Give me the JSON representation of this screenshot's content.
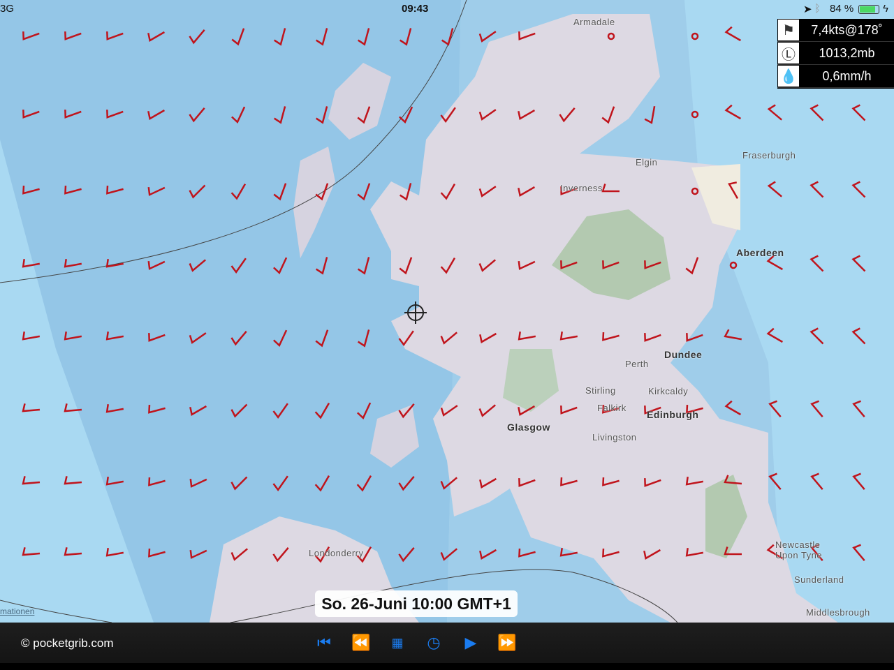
{
  "status_bar": {
    "carrier": "3G",
    "time": "09:43",
    "battery": "84 %",
    "battery_level": 0.84
  },
  "info_panel": {
    "wind": "7,4kts@178˚",
    "pressure": "1013,2mb",
    "precipitation": "0,6mm/h",
    "icons": [
      "windsock-icon",
      "pressure-low-icon",
      "raindrop-icon"
    ]
  },
  "places": [
    {
      "name": "Armadale"
    },
    {
      "name": "Elgin"
    },
    {
      "name": "Fraserburgh"
    },
    {
      "name": "Inverness"
    },
    {
      "name": "Aberdeen"
    },
    {
      "name": "Dundee"
    },
    {
      "name": "Perth"
    },
    {
      "name": "Stirling"
    },
    {
      "name": "Kirkcaldy"
    },
    {
      "name": "Falkirk"
    },
    {
      "name": "Edinburgh"
    },
    {
      "name": "Glasgow"
    },
    {
      "name": "Livingston"
    },
    {
      "name": "Londonderry"
    },
    {
      "name": "Newcastle"
    },
    {
      "name": "Upon Tyne"
    },
    {
      "name": "Sunderland"
    },
    {
      "name": "Middlesbrough"
    }
  ],
  "map_link": "mationen",
  "forecast_time": "So. 26-Juni 10:00 GMT+1",
  "footer": {
    "copyright": "© pocketgrib.com",
    "controls": [
      "skip-to-start",
      "step-back",
      "calendar",
      "clock",
      "play",
      "step-forward"
    ]
  },
  "colors": {
    "barb": "#c0141c",
    "sea": "#a9d9f2",
    "accent": "#1a7cf0"
  },
  "wind_barbs_direction_deg": [
    [
      250,
      250,
      250,
      240,
      220,
      200,
      195,
      195,
      195,
      195,
      195,
      235,
      250,
      null,
      null,
      null,
      null,
      300,
      null,
      null,
      null
    ],
    [
      250,
      250,
      250,
      240,
      220,
      205,
      195,
      195,
      200,
      205,
      215,
      235,
      240,
      220,
      200,
      190,
      null,
      300,
      310,
      315,
      315
    ],
    [
      255,
      255,
      255,
      245,
      225,
      210,
      200,
      200,
      200,
      195,
      210,
      235,
      240,
      250,
      270,
      null,
      null,
      330,
      310,
      315,
      315
    ],
    [
      260,
      260,
      260,
      245,
      230,
      215,
      205,
      195,
      195,
      200,
      210,
      230,
      245,
      250,
      250,
      250,
      200,
      null,
      300,
      315,
      315
    ],
    [
      260,
      260,
      260,
      250,
      235,
      220,
      205,
      200,
      195,
      215,
      230,
      240,
      260,
      260,
      255,
      250,
      250,
      280,
      300,
      315,
      315
    ],
    [
      265,
      265,
      260,
      255,
      240,
      225,
      215,
      210,
      205,
      220,
      235,
      230,
      240,
      250,
      255,
      250,
      255,
      300,
      320,
      320,
      320
    ],
    [
      265,
      265,
      260,
      255,
      245,
      225,
      215,
      210,
      210,
      220,
      230,
      240,
      250,
      255,
      255,
      250,
      260,
      275,
      320,
      320,
      320
    ],
    [
      265,
      265,
      260,
      255,
      245,
      230,
      220,
      210,
      210,
      220,
      230,
      240,
      255,
      260,
      255,
      240,
      260,
      270,
      300,
      320,
      320
    ]
  ]
}
